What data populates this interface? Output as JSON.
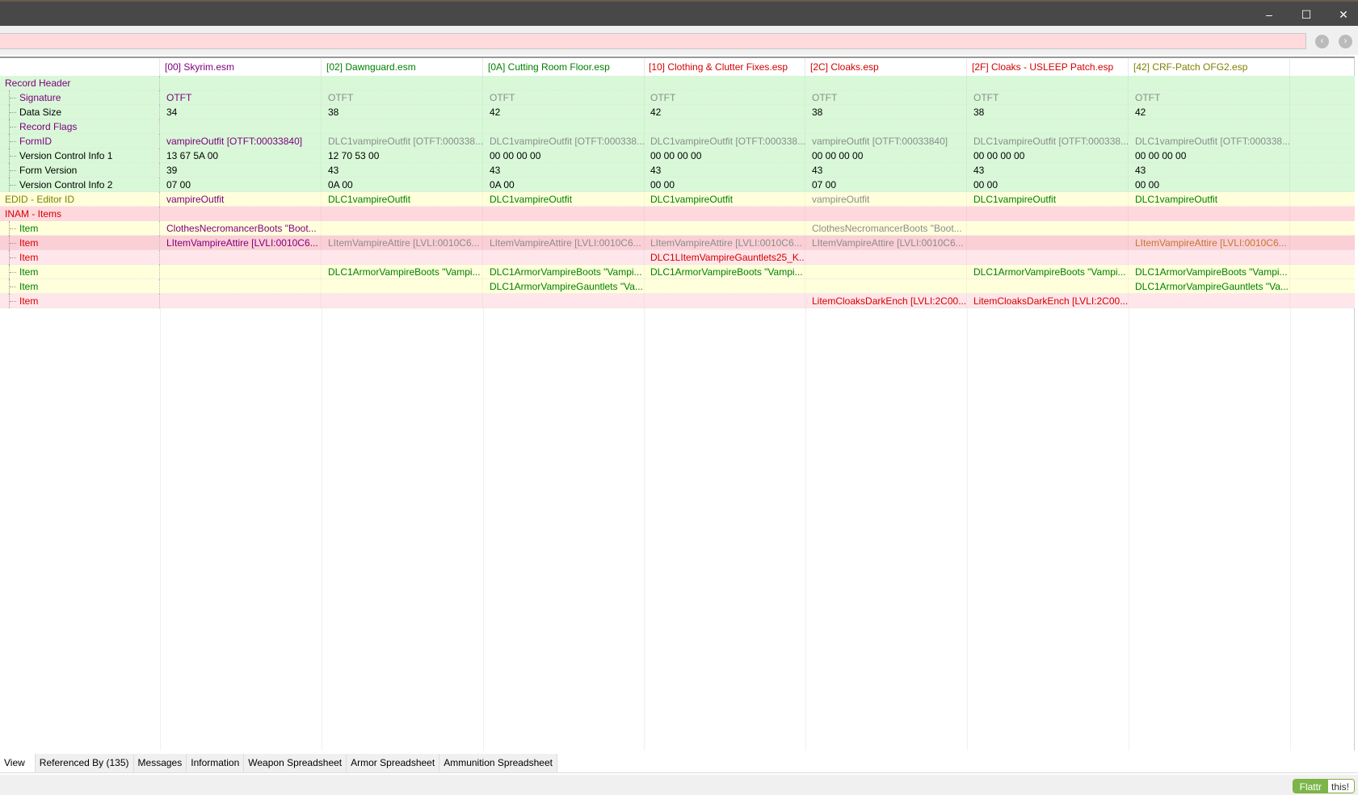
{
  "window": {
    "minimize": "–",
    "maximize": "☐",
    "close": "✕"
  },
  "filter": {
    "value": ""
  },
  "nav": {
    "back_icon": "back-circle-icon",
    "forward_icon": "forward-circle-icon"
  },
  "colors": {
    "purple": "#800080",
    "black": "#000000",
    "gray": "#8c8c8c",
    "green": "#008000",
    "red": "#d40000",
    "olive": "#808000",
    "orange": "#c07830",
    "green_bg": "#d8f8d8",
    "yellow_bg": "#ffffdc",
    "pink_bg": "#ffd8de",
    "pink_light_bg": "#ffe6ea",
    "pink_deep_bg": "#fbcfd6"
  },
  "columns": [
    {
      "label": "[00] Skyrim.esm",
      "color": "purple"
    },
    {
      "label": "[02] Dawnguard.esm",
      "color": "green"
    },
    {
      "label": "[0A] Cutting Room Floor.esp",
      "color": "green"
    },
    {
      "label": "[10] Clothing & Clutter Fixes.esp",
      "color": "red"
    },
    {
      "label": "[2C] Cloaks.esp",
      "color": "red"
    },
    {
      "label": "[2F] Cloaks - USLEEP Patch.esp",
      "color": "red"
    },
    {
      "label": "[42] CRF-Patch OFG2.esp",
      "color": "olive"
    }
  ],
  "rows": [
    {
      "label": "Record Header",
      "child": false,
      "lc": "purple",
      "bg": "green_bg",
      "cells": [
        [
          "",
          ""
        ],
        [
          "",
          ""
        ],
        [
          "",
          ""
        ],
        [
          "",
          ""
        ],
        [
          "",
          ""
        ],
        [
          "",
          ""
        ],
        [
          "",
          ""
        ]
      ]
    },
    {
      "label": "Signature",
      "child": true,
      "lc": "purple",
      "bg": "green_bg",
      "cells": [
        [
          "OTFT",
          "purple"
        ],
        [
          "OTFT",
          "gray"
        ],
        [
          "OTFT",
          "gray"
        ],
        [
          "OTFT",
          "gray"
        ],
        [
          "OTFT",
          "gray"
        ],
        [
          "OTFT",
          "gray"
        ],
        [
          "OTFT",
          "gray"
        ]
      ]
    },
    {
      "label": "Data Size",
      "child": true,
      "lc": "black",
      "bg": "green_bg",
      "cells": [
        [
          "34",
          "black"
        ],
        [
          "38",
          "black"
        ],
        [
          "42",
          "black"
        ],
        [
          "42",
          "black"
        ],
        [
          "38",
          "black"
        ],
        [
          "38",
          "black"
        ],
        [
          "42",
          "black"
        ]
      ]
    },
    {
      "label": "Record Flags",
      "child": true,
      "lc": "purple",
      "bg": "green_bg",
      "cells": [
        [
          "",
          ""
        ],
        [
          "",
          ""
        ],
        [
          "",
          ""
        ],
        [
          "",
          ""
        ],
        [
          "",
          ""
        ],
        [
          "",
          ""
        ],
        [
          "",
          ""
        ]
      ]
    },
    {
      "label": "FormID",
      "child": true,
      "lc": "purple",
      "bg": "green_bg",
      "cells": [
        [
          "vampireOutfit [OTFT:00033840]",
          "purple"
        ],
        [
          "DLC1vampireOutfit [OTFT:000338...",
          "gray"
        ],
        [
          "DLC1vampireOutfit [OTFT:000338...",
          "gray"
        ],
        [
          "DLC1vampireOutfit [OTFT:000338...",
          "gray"
        ],
        [
          "vampireOutfit [OTFT:00033840]",
          "gray"
        ],
        [
          "DLC1vampireOutfit [OTFT:000338...",
          "gray"
        ],
        [
          "DLC1vampireOutfit [OTFT:000338...",
          "gray"
        ]
      ]
    },
    {
      "label": "Version Control Info 1",
      "child": true,
      "lc": "black",
      "bg": "green_bg",
      "cells": [
        [
          "13 67 5A 00",
          "black"
        ],
        [
          "12 70 53 00",
          "black"
        ],
        [
          "00 00 00 00",
          "black"
        ],
        [
          "00 00 00 00",
          "black"
        ],
        [
          "00 00 00 00",
          "black"
        ],
        [
          "00 00 00 00",
          "black"
        ],
        [
          "00 00 00 00",
          "black"
        ]
      ]
    },
    {
      "label": "Form Version",
      "child": true,
      "lc": "black",
      "bg": "green_bg",
      "cells": [
        [
          "39",
          "black"
        ],
        [
          "43",
          "black"
        ],
        [
          "43",
          "black"
        ],
        [
          "43",
          "black"
        ],
        [
          "43",
          "black"
        ],
        [
          "43",
          "black"
        ],
        [
          "43",
          "black"
        ]
      ]
    },
    {
      "label": "Version Control Info 2",
      "child": true,
      "lc": "black",
      "bg": "green_bg",
      "cells": [
        [
          "07 00",
          "black"
        ],
        [
          "0A 00",
          "black"
        ],
        [
          "0A 00",
          "black"
        ],
        [
          "00 00",
          "black"
        ],
        [
          "07 00",
          "black"
        ],
        [
          "00 00",
          "black"
        ],
        [
          "00 00",
          "black"
        ]
      ]
    },
    {
      "label": "EDID - Editor ID",
      "child": false,
      "lc": "olive",
      "bg": "yellow_bg",
      "cells": [
        [
          "vampireOutfit",
          "purple"
        ],
        [
          "DLC1vampireOutfit",
          "green"
        ],
        [
          "DLC1vampireOutfit",
          "green"
        ],
        [
          "DLC1vampireOutfit",
          "green"
        ],
        [
          "vampireOutfit",
          "gray"
        ],
        [
          "DLC1vampireOutfit",
          "green"
        ],
        [
          "DLC1vampireOutfit",
          "green"
        ]
      ]
    },
    {
      "label": "INAM - Items",
      "child": false,
      "lc": "red",
      "bg": "pink_bg",
      "cells": [
        [
          "",
          ""
        ],
        [
          "",
          ""
        ],
        [
          "",
          ""
        ],
        [
          "",
          ""
        ],
        [
          "",
          ""
        ],
        [
          "",
          ""
        ],
        [
          "",
          ""
        ]
      ]
    },
    {
      "label": "Item",
      "child": true,
      "lc": "green",
      "bg": "yellow_bg",
      "cells": [
        [
          "ClothesNecromancerBoots \"Boot...",
          "purple"
        ],
        [
          "",
          ""
        ],
        [
          "",
          ""
        ],
        [
          "",
          ""
        ],
        [
          "ClothesNecromancerBoots \"Boot...",
          "gray"
        ],
        [
          "",
          ""
        ],
        [
          "",
          ""
        ]
      ]
    },
    {
      "label": "Item",
      "child": true,
      "lc": "red",
      "bg": "pink_deep_bg",
      "cells": [
        [
          "LItemVampireAttire [LVLI:0010C6...",
          "purple"
        ],
        [
          "LItemVampireAttire [LVLI:0010C6...",
          "gray"
        ],
        [
          "LItemVampireAttire [LVLI:0010C6...",
          "gray"
        ],
        [
          "LItemVampireAttire [LVLI:0010C6...",
          "gray"
        ],
        [
          "LItemVampireAttire [LVLI:0010C6...",
          "gray"
        ],
        [
          "",
          ""
        ],
        [
          "LItemVampireAttire [LVLI:0010C6...",
          "orange"
        ]
      ]
    },
    {
      "label": "Item",
      "child": true,
      "lc": "red",
      "bg": "pink_light_bg",
      "cells": [
        [
          "",
          ""
        ],
        [
          "",
          ""
        ],
        [
          "",
          ""
        ],
        [
          "DLC1LItemVampireGauntlets25_K...",
          "red"
        ],
        [
          "",
          ""
        ],
        [
          "",
          ""
        ],
        [
          "",
          ""
        ]
      ]
    },
    {
      "label": "Item",
      "child": true,
      "lc": "green",
      "bg": "yellow_bg",
      "cells": [
        [
          "",
          ""
        ],
        [
          "DLC1ArmorVampireBoots \"Vampi...",
          "green"
        ],
        [
          "DLC1ArmorVampireBoots \"Vampi...",
          "green"
        ],
        [
          "DLC1ArmorVampireBoots \"Vampi...",
          "green"
        ],
        [
          "",
          ""
        ],
        [
          "DLC1ArmorVampireBoots \"Vampi...",
          "green"
        ],
        [
          "DLC1ArmorVampireBoots \"Vampi...",
          "green"
        ]
      ]
    },
    {
      "label": "Item",
      "child": true,
      "lc": "green",
      "bg": "yellow_bg",
      "cells": [
        [
          "",
          ""
        ],
        [
          "",
          ""
        ],
        [
          "DLC1ArmorVampireGauntlets \"Va...",
          "green"
        ],
        [
          "",
          ""
        ],
        [
          "",
          ""
        ],
        [
          "",
          ""
        ],
        [
          "DLC1ArmorVampireGauntlets \"Va...",
          "green"
        ]
      ]
    },
    {
      "label": "Item",
      "child": true,
      "lc": "red",
      "bg": "pink_light_bg",
      "cells": [
        [
          "",
          ""
        ],
        [
          "",
          ""
        ],
        [
          "",
          ""
        ],
        [
          "",
          ""
        ],
        [
          "LitemCloaksDarkEnch [LVLI:2C00...",
          "red"
        ],
        [
          "LitemCloaksDarkEnch [LVLI:2C00...",
          "red"
        ],
        [
          "",
          ""
        ]
      ]
    }
  ],
  "tabs": [
    "View",
    "Referenced By (135)",
    "Messages",
    "Information",
    "Weapon Spreadsheet",
    "Armor Spreadsheet",
    "Ammunition Spreadsheet"
  ],
  "status": {
    "flattr": "Flattr",
    "this": "this!"
  }
}
